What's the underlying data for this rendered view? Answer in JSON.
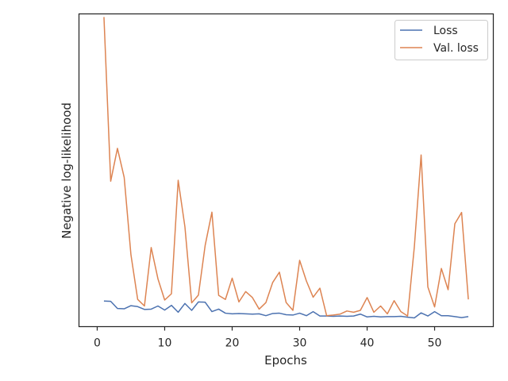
{
  "chart_data": {
    "type": "line",
    "title": "",
    "xlabel": "Epochs",
    "ylabel": "Negative log-likelihood",
    "xlim": [
      -2.7,
      58.7
    ],
    "ylim": [
      0,
      1
    ],
    "xticks": [
      0,
      10,
      20,
      30,
      40,
      50
    ],
    "y_tick_labels_shown": false,
    "grid": false,
    "legend_position": "top-right",
    "x": [
      1,
      2,
      3,
      4,
      5,
      6,
      7,
      8,
      9,
      10,
      11,
      12,
      13,
      14,
      15,
      16,
      17,
      18,
      19,
      20,
      21,
      22,
      23,
      24,
      25,
      26,
      27,
      28,
      29,
      30,
      31,
      32,
      33,
      34,
      35,
      36,
      37,
      38,
      39,
      40,
      41,
      42,
      43,
      44,
      45,
      46,
      47,
      48,
      49,
      50,
      51,
      52,
      53,
      54,
      55
    ],
    "series": [
      {
        "name": "Loss",
        "color": "#4c72b0",
        "values": [
          0.082,
          0.081,
          0.058,
          0.057,
          0.067,
          0.064,
          0.055,
          0.056,
          0.066,
          0.053,
          0.068,
          0.046,
          0.074,
          0.052,
          0.079,
          0.078,
          0.048,
          0.056,
          0.043,
          0.041,
          0.042,
          0.041,
          0.04,
          0.041,
          0.035,
          0.042,
          0.043,
          0.038,
          0.037,
          0.043,
          0.035,
          0.048,
          0.034,
          0.034,
          0.033,
          0.034,
          0.033,
          0.034,
          0.04,
          0.031,
          0.033,
          0.031,
          0.032,
          0.032,
          0.033,
          0.03,
          0.028,
          0.044,
          0.034,
          0.048,
          0.035,
          0.035,
          0.032,
          0.029,
          0.032
        ]
      },
      {
        "name": "Val. loss",
        "color": "#dd8452",
        "values": [
          0.99,
          0.465,
          0.57,
          0.477,
          0.23,
          0.087,
          0.066,
          0.253,
          0.153,
          0.085,
          0.105,
          0.468,
          0.319,
          0.076,
          0.101,
          0.26,
          0.366,
          0.1,
          0.087,
          0.155,
          0.079,
          0.112,
          0.093,
          0.056,
          0.077,
          0.141,
          0.174,
          0.077,
          0.052,
          0.212,
          0.146,
          0.094,
          0.123,
          0.035,
          0.037,
          0.04,
          0.05,
          0.046,
          0.052,
          0.093,
          0.046,
          0.066,
          0.041,
          0.083,
          0.048,
          0.034,
          0.256,
          0.549,
          0.127,
          0.063,
          0.186,
          0.118,
          0.329,
          0.365,
          0.087
        ]
      }
    ]
  }
}
